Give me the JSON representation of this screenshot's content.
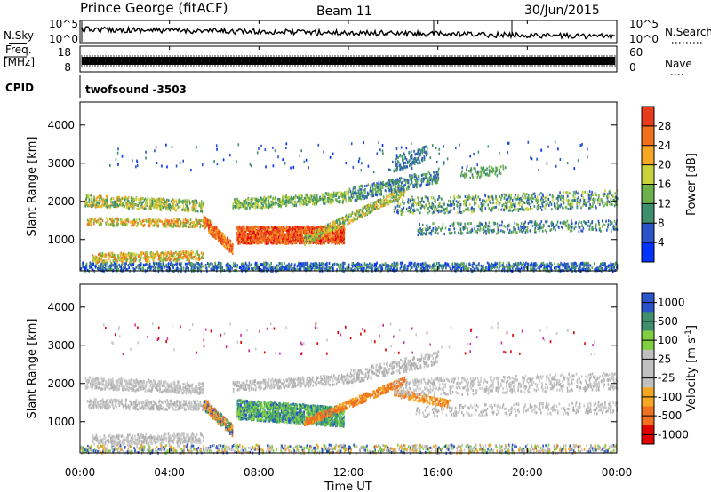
{
  "header": {
    "station": "Prince George (fitACF)",
    "beam": "Beam 11",
    "date": "30/Jun/2015"
  },
  "side_labels": {
    "nsky": "N.Sky",
    "nsearch": "N.Search",
    "freq_line1": "Freq.",
    "freq_line2": "[MHz]",
    "nave": "Nave",
    "cpid": "CPID"
  },
  "noise_ticks": {
    "top": "10^5",
    "bottom": "10^0"
  },
  "freq_ticks": {
    "left": [
      "18",
      "8"
    ],
    "right": [
      "60",
      "0"
    ]
  },
  "cpid_value": "twofsound -3503",
  "xaxis": {
    "title": "Time UT",
    "ticks": [
      "00:00",
      "04:00",
      "08:00",
      "12:00",
      "16:00",
      "20:00",
      "00:00"
    ]
  },
  "colors": {
    "power": [
      "#0033ff",
      "#2a55c8",
      "#3f8f6f",
      "#6bb04a",
      "#c8d23c",
      "#f5a623",
      "#f07020",
      "#e83a1c",
      "#e00000"
    ],
    "velocity": [
      "#e00000",
      "#f07020",
      "#f5a623",
      "#c0c0c0",
      "#c0c0c0",
      "#7fcf3f",
      "#3f9f6f",
      "#2a55c8"
    ]
  },
  "chart_data": [
    {
      "type": "heatmap",
      "name": "power",
      "ylabel": "Slant Range [km]",
      "xlabel": "Time UT",
      "xlim": [
        0,
        24
      ],
      "ylim": [
        180,
        4600
      ],
      "yticks": [
        1000,
        2000,
        3000,
        4000
      ],
      "colorbar": {
        "label": "Power [dB]",
        "ticks": [
          4,
          8,
          12,
          16,
          20,
          24,
          28
        ],
        "range": [
          0,
          32
        ]
      }
    },
    {
      "type": "heatmap",
      "name": "velocity",
      "ylabel": "Slant Range [km]",
      "xlabel": "Time UT",
      "xlim": [
        0,
        24
      ],
      "ylim": [
        180,
        4600
      ],
      "yticks": [
        1000,
        2000,
        3000,
        4000
      ],
      "colorbar": {
        "label": "Velocity [m s^-1]",
        "ticks": [
          "1000",
          "500",
          "100",
          "25",
          "-25",
          "-100",
          "-500",
          "-1000"
        ]
      }
    }
  ]
}
